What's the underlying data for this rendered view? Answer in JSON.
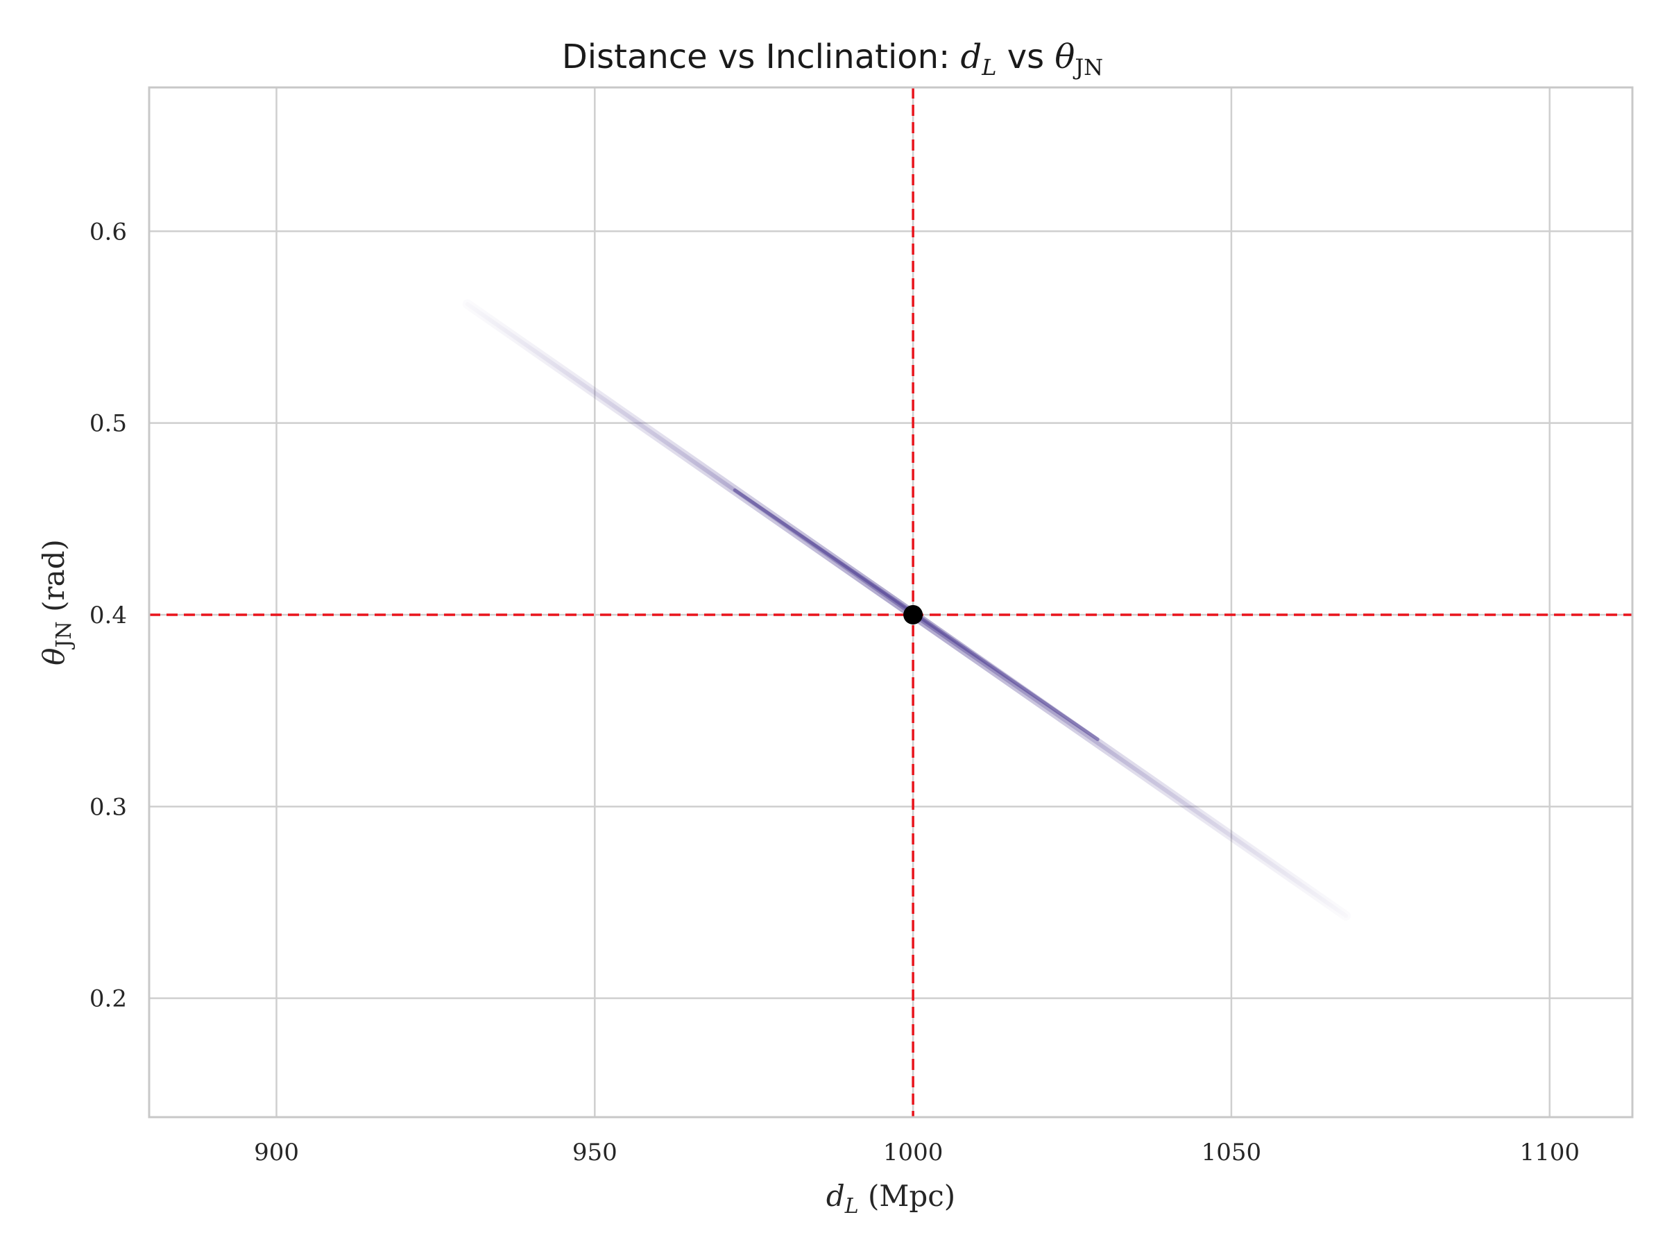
{
  "chart_data": {
    "type": "scatter",
    "title": {
      "prefix": "Distance vs Inclination: ",
      "sym1": "d",
      "sym1_sub": "L",
      "mid": " vs ",
      "sym2": "θ",
      "sym2_sub": "JN"
    },
    "xlabel": {
      "sym": "d",
      "sub": "L",
      "rest": " (Mpc)"
    },
    "ylabel": {
      "sym": "θ",
      "sub": "JN",
      "rest": " (rad)"
    },
    "xlim": [
      880,
      1113
    ],
    "ylim": [
      0.138,
      0.675
    ],
    "x_ticks": [
      900,
      950,
      1000,
      1050,
      1100
    ],
    "y_ticks": [
      0.2,
      0.3,
      0.4,
      0.5,
      0.6
    ],
    "grid": true,
    "posterior_band": {
      "start": [
        930,
        0.562
      ],
      "end": [
        1068,
        0.243
      ],
      "core_start": [
        972,
        0.465
      ],
      "core_end": [
        1029,
        0.335
      ]
    },
    "injection": {
      "x": 1000,
      "y": 0.4
    },
    "colors": {
      "reference_lines": "#e8141c",
      "injection_marker": "#000000",
      "posterior": "#4b3a8f"
    }
  }
}
